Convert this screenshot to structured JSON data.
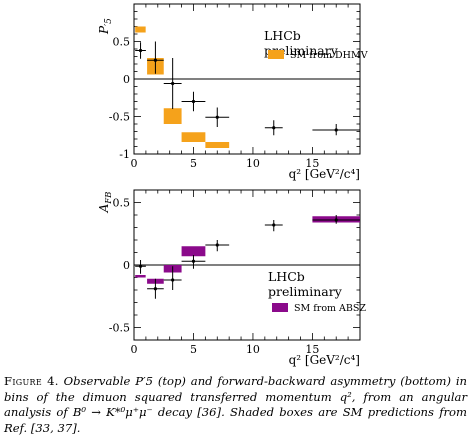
{
  "figure": {
    "caption": {
      "label": "Figure 4.",
      "text": "Observable P′5 (top) and forward-backward asymmetry (bottom) in bins of the dimuon squared transferred momentum q², from an angular analysis of B⁰ → K*⁰μ⁺μ⁻ decay [36]. Shaded boxes are SM predictions from Ref. [33, 37]."
    }
  },
  "chart_data": [
    {
      "type": "scatter",
      "title": "",
      "xlabel": "q² [GeV²/c⁴]",
      "ylabel": "P′5",
      "xlim": [
        0,
        19
      ],
      "ylim": [
        -1,
        1
      ],
      "x_ticks": [
        "0",
        "5",
        "10",
        "15"
      ],
      "y_ticks": [
        "0.5",
        "0",
        "-0.5",
        "-1"
      ],
      "y_tick_values": [
        0.5,
        0,
        -0.5,
        -1
      ],
      "legend_text": [
        "LHCb",
        "preliminary"
      ],
      "colors": {
        "sm": "#f5a21b",
        "data": "#000000",
        "zero": "#000000"
      },
      "series": [
        {
          "name": "SM from DHMV",
          "kind": "boxes",
          "boxes": [
            {
              "x0": 0.1,
              "x1": 0.98,
              "y0": 0.62,
              "y1": 0.7
            },
            {
              "x0": 1.1,
              "x1": 2.5,
              "y0": 0.06,
              "y1": 0.28
            },
            {
              "x0": 2.5,
              "x1": 4.0,
              "y0": -0.6,
              "y1": -0.39
            },
            {
              "x0": 4.0,
              "x1": 6.0,
              "y0": -0.84,
              "y1": -0.71
            },
            {
              "x0": 6.0,
              "x1": 8.0,
              "y0": -0.92,
              "y1": -0.84
            }
          ]
        },
        {
          "name": "LHCb data",
          "kind": "points",
          "points": [
            {
              "x": 0.55,
              "xerr": 0.45,
              "y": 0.38,
              "yl": 0.27,
              "yh": 0.49
            },
            {
              "x": 1.8,
              "xerr": 0.7,
              "y": 0.25,
              "yl": 0.07,
              "yh": 0.5
            },
            {
              "x": 3.25,
              "xerr": 0.75,
              "y": -0.06,
              "yl": -0.4,
              "yh": 0.28
            },
            {
              "x": 5.0,
              "xerr": 1.0,
              "y": -0.3,
              "yl": -0.43,
              "yh": -0.17
            },
            {
              "x": 7.0,
              "xerr": 1.0,
              "y": -0.51,
              "yl": -0.64,
              "yh": -0.38
            },
            {
              "x": 11.75,
              "xerr": 0.75,
              "y": -0.65,
              "yl": -0.75,
              "yh": -0.55
            },
            {
              "x": 17.0,
              "xerr": 2.0,
              "y": -0.68,
              "yl": -0.75,
              "yh": -0.6
            }
          ]
        }
      ]
    },
    {
      "type": "scatter",
      "title": "",
      "xlabel": "q² [GeV²/c⁴]",
      "ylabel": "AFB",
      "xlim": [
        0,
        19
      ],
      "ylim": [
        -0.6,
        0.6
      ],
      "x_ticks": [
        "0",
        "5",
        "10",
        "15"
      ],
      "y_ticks": [
        "0.5",
        "0",
        "-0.5"
      ],
      "y_tick_values": [
        0.5,
        0,
        -0.5
      ],
      "legend_text": [
        "LHCb",
        "preliminary"
      ],
      "colors": {
        "sm": "#8b0a8b",
        "data": "#000000",
        "zero": "#000000"
      },
      "series": [
        {
          "name": "SM from ABSZ",
          "kind": "boxes",
          "boxes": [
            {
              "x0": 0.1,
              "x1": 0.98,
              "y0": -0.1,
              "y1": -0.08
            },
            {
              "x0": 1.1,
              "x1": 2.5,
              "y0": -0.15,
              "y1": -0.11
            },
            {
              "x0": 2.5,
              "x1": 4.0,
              "y0": -0.06,
              "y1": 0.0
            },
            {
              "x0": 4.0,
              "x1": 6.0,
              "y0": 0.07,
              "y1": 0.15
            },
            {
              "x0": 15.0,
              "x1": 19.0,
              "y0": 0.34,
              "y1": 0.39
            }
          ]
        },
        {
          "name": "LHCb data",
          "kind": "points",
          "points": [
            {
              "x": 0.55,
              "xerr": 0.45,
              "y": -0.01,
              "yl": -0.07,
              "yh": 0.04
            },
            {
              "x": 1.8,
              "xerr": 0.7,
              "y": -0.19,
              "yl": -0.27,
              "yh": -0.11
            },
            {
              "x": 3.25,
              "xerr": 0.75,
              "y": -0.12,
              "yl": -0.2,
              "yh": -0.01
            },
            {
              "x": 5.0,
              "xerr": 1.0,
              "y": 0.03,
              "yl": -0.03,
              "yh": 0.08
            },
            {
              "x": 7.0,
              "xerr": 1.0,
              "y": 0.16,
              "yl": 0.11,
              "yh": 0.2
            },
            {
              "x": 11.75,
              "xerr": 0.75,
              "y": 0.32,
              "yl": 0.27,
              "yh": 0.36
            },
            {
              "x": 17.0,
              "xerr": 2.0,
              "y": 0.36,
              "yl": 0.33,
              "yh": 0.4
            }
          ]
        }
      ]
    }
  ]
}
